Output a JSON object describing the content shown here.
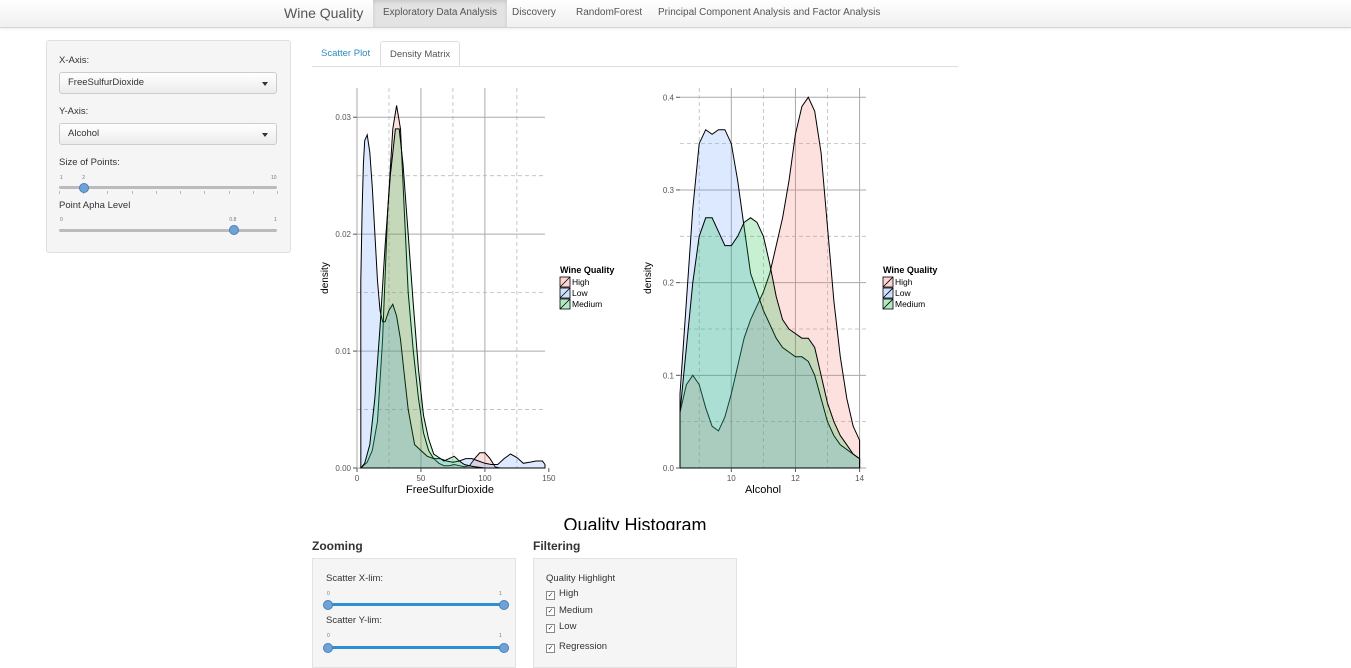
{
  "navbar": {
    "brand": "Wine Quality",
    "items": [
      {
        "label": "Exploratory Data Analysis",
        "active": true
      },
      {
        "label": "Discovery",
        "active": false
      },
      {
        "label": "RandomForest",
        "active": false
      },
      {
        "label": "Principal Component Analysis and Factor Analysis",
        "active": false
      }
    ]
  },
  "sidebar": {
    "x_axis_label": "X-Axis:",
    "x_axis_value": "FreeSulfurDioxide",
    "y_axis_label": "Y-Axis:",
    "y_axis_value": "Alcohol",
    "size_label": "Size of Points:",
    "size_slider": {
      "min": "1",
      "max": "10",
      "value": 2,
      "value_label": "2"
    },
    "alpha_label": "Point Apha Level",
    "alpha_slider": {
      "min": "0",
      "max": "1",
      "value": 0.8,
      "value_label": "0.8"
    }
  },
  "tabs": [
    {
      "label": "Scatter Plot",
      "active": false
    },
    {
      "label": "Density Matrix",
      "active": true
    }
  ],
  "colors": {
    "High": "#f8766d",
    "Low": "#619cff",
    "Medium": "#00ba38"
  },
  "chart_data": [
    {
      "type": "area",
      "xlabel": "FreeSulfurDioxide",
      "ylabel": "density",
      "xlim": [
        0,
        147
      ],
      "ylim": [
        0,
        0.0325
      ],
      "xticks": [
        "0",
        "50",
        "100",
        "150"
      ],
      "yticks": [
        "0.00",
        "0.01",
        "0.02",
        "0.03"
      ],
      "legend_title": "Wine Quality",
      "series": [
        {
          "name": "High",
          "x": [
            3,
            8,
            12,
            16,
            20,
            24,
            28,
            31,
            34,
            37,
            40,
            44,
            48,
            52,
            56,
            60,
            64,
            68,
            72,
            76,
            80,
            84,
            88,
            92,
            96,
            100,
            104,
            108,
            112
          ],
          "y": [
            0,
            0.0005,
            0.0015,
            0.004,
            0.011,
            0.022,
            0.029,
            0.031,
            0.029,
            0.022,
            0.015,
            0.01,
            0.006,
            0.003,
            0.0015,
            0.0008,
            0.0004,
            0.0002,
            0.0002,
            0.0003,
            0.0002,
            0.0001,
            0.0002,
            0.0008,
            0.0013,
            0.0013,
            0.0008,
            0.0001,
            0
          ]
        },
        {
          "name": "Low",
          "x": [
            3,
            4,
            5,
            6,
            8,
            10,
            12,
            14,
            16,
            18,
            20,
            22,
            25,
            28,
            31,
            34,
            37,
            40,
            45,
            50,
            55,
            60,
            65,
            70,
            75,
            80,
            85,
            90,
            95,
            100,
            105,
            110,
            115,
            120,
            125,
            130,
            135,
            140,
            145,
            147
          ],
          "y": [
            0.016,
            0.022,
            0.026,
            0.028,
            0.0285,
            0.027,
            0.024,
            0.02,
            0.016,
            0.0135,
            0.0125,
            0.0125,
            0.0135,
            0.014,
            0.013,
            0.011,
            0.008,
            0.005,
            0.002,
            0.0015,
            0.001,
            0.0008,
            0.0008,
            0.0006,
            0.0005,
            0.0006,
            0.0008,
            0.0008,
            0.0006,
            0.0004,
            0.0003,
            0.0003,
            0.0008,
            0.0012,
            0.0009,
            0.0004,
            0.0005,
            0.0006,
            0.0006,
            0.0003
          ]
        },
        {
          "name": "Medium",
          "x": [
            3,
            6,
            10,
            14,
            18,
            22,
            26,
            30,
            33,
            36,
            40,
            44,
            48,
            52,
            56,
            60,
            64,
            68,
            72,
            76,
            80,
            84,
            88,
            92,
            96,
            100,
            104,
            108,
            112,
            116
          ],
          "y": [
            0,
            0.0004,
            0.002,
            0.006,
            0.012,
            0.019,
            0.025,
            0.029,
            0.029,
            0.026,
            0.02,
            0.014,
            0.0085,
            0.0045,
            0.0025,
            0.0012,
            0.0009,
            0.0006,
            0.0008,
            0.001,
            0.0006,
            0.0003,
            0.0002,
            0.0001,
            5e-05,
            0,
            0,
            0,
            0,
            0
          ]
        }
      ]
    },
    {
      "type": "area",
      "xlabel": "Alcohol",
      "ylabel": "density",
      "xlim": [
        8.4,
        14.2
      ],
      "ylim": [
        0,
        0.41
      ],
      "xticks": [
        "10",
        "12",
        "14"
      ],
      "yticks": [
        "0.0",
        "0.1",
        "0.2",
        "0.3",
        "0.4"
      ],
      "legend_title": "Wine Quality",
      "series": [
        {
          "name": "High",
          "x": [
            8.4,
            8.6,
            8.8,
            9.0,
            9.2,
            9.4,
            9.6,
            9.8,
            10.0,
            10.2,
            10.4,
            10.6,
            10.8,
            11.0,
            11.2,
            11.4,
            11.6,
            11.8,
            12.0,
            12.2,
            12.4,
            12.6,
            12.8,
            13.0,
            13.2,
            13.4,
            13.6,
            13.8,
            14.0,
            14.0
          ],
          "y": [
            0.06,
            0.09,
            0.1,
            0.09,
            0.065,
            0.045,
            0.04,
            0.055,
            0.08,
            0.11,
            0.14,
            0.16,
            0.175,
            0.19,
            0.21,
            0.24,
            0.27,
            0.31,
            0.36,
            0.39,
            0.4,
            0.385,
            0.34,
            0.26,
            0.18,
            0.12,
            0.075,
            0.045,
            0.03,
            0.025
          ]
        },
        {
          "name": "Low",
          "x": [
            8.4,
            8.6,
            8.8,
            9.0,
            9.2,
            9.4,
            9.6,
            9.8,
            10.0,
            10.2,
            10.4,
            10.6,
            10.8,
            11.0,
            11.2,
            11.4,
            11.6,
            11.8,
            12.0,
            12.2,
            12.4,
            12.6,
            12.8,
            13.0,
            13.2,
            13.4,
            13.6,
            13.8,
            14.0
          ],
          "y": [
            0.08,
            0.18,
            0.28,
            0.35,
            0.365,
            0.36,
            0.365,
            0.365,
            0.35,
            0.31,
            0.26,
            0.21,
            0.19,
            0.17,
            0.155,
            0.14,
            0.13,
            0.125,
            0.12,
            0.12,
            0.115,
            0.1,
            0.075,
            0.05,
            0.035,
            0.025,
            0.02,
            0.015,
            0.01
          ]
        },
        {
          "name": "Medium",
          "x": [
            8.4,
            8.6,
            8.8,
            9.0,
            9.2,
            9.4,
            9.6,
            9.8,
            10.0,
            10.2,
            10.4,
            10.6,
            10.8,
            11.0,
            11.2,
            11.4,
            11.6,
            11.8,
            12.0,
            12.2,
            12.4,
            12.6,
            12.8,
            13.0,
            13.2,
            13.4,
            13.6,
            13.8,
            14.0
          ],
          "y": [
            0.06,
            0.13,
            0.2,
            0.25,
            0.27,
            0.27,
            0.255,
            0.24,
            0.24,
            0.25,
            0.265,
            0.27,
            0.265,
            0.25,
            0.22,
            0.185,
            0.16,
            0.15,
            0.145,
            0.14,
            0.14,
            0.13,
            0.1,
            0.07,
            0.05,
            0.035,
            0.025,
            0.015,
            0.01
          ]
        }
      ]
    }
  ],
  "histogram_title": "Quality Histogram",
  "zooming": {
    "title": "Zooming",
    "xlim_label": "Scatter X-lim:",
    "xlim_min": "0",
    "xlim_max": "1",
    "xlim_range": [
      0,
      1
    ],
    "ylim_label": "Scatter Y-lim:",
    "ylim_min": "0",
    "ylim_max": "1",
    "ylim_range": [
      0,
      1
    ]
  },
  "filtering": {
    "title": "Filtering",
    "group_label": "Quality Highlight",
    "options": [
      {
        "label": "High",
        "checked": true
      },
      {
        "label": "Medium",
        "checked": true
      },
      {
        "label": "Low",
        "checked": true
      }
    ],
    "regression": {
      "label": "Regression",
      "checked": true
    }
  }
}
